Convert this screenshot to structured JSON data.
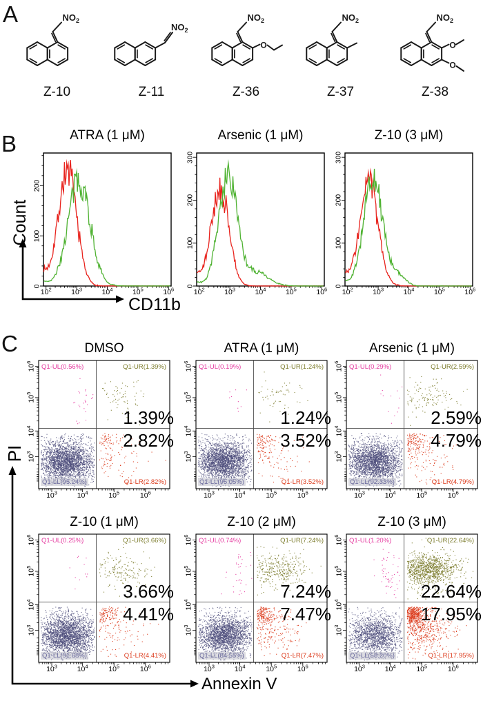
{
  "figure": {
    "panel_a": {
      "letter": "A",
      "no2_label": "NO2",
      "o_label": "O",
      "compounds": [
        {
          "name": "Z-10",
          "variant": "vinyl1",
          "substituents": "1-(2-nitrovinyl)naphthalene"
        },
        {
          "name": "Z-11",
          "variant": "vinyl2",
          "substituents": "2-(2-nitrovinyl)naphthalene"
        },
        {
          "name": "Z-36",
          "variant": "vinyl1-oet",
          "substituents": "2-ethoxy-1-(2-nitrovinyl)naphthalene"
        },
        {
          "name": "Z-37",
          "variant": "vinyl1-me",
          "substituents": "2-methyl-1-(2-nitrovinyl)naphthalene"
        },
        {
          "name": "Z-38",
          "variant": "vinyl1-diome",
          "substituents": "2,3-dimethoxy-1-(2-nitrovinyl)naphthalene"
        }
      ]
    },
    "panel_b": {
      "letter": "B",
      "ylabel": "Count",
      "xlabel": "CD11b"
    },
    "panel_c": {
      "letter": "C",
      "ylabel": "PI",
      "xlabel": "Annexin V"
    }
  },
  "colors": {
    "hist_red": "#e8231d",
    "hist_green": "#4fb232",
    "dot_ul": "#e5399f",
    "dot_ur": "#7c7c2d",
    "dot_ll": "#4d4d7c",
    "dot_lr": "#dc3a1b",
    "lab_ul": "#e5399f",
    "lab_ur": "#7c7c2d",
    "lab_ll": "#6b6b9e",
    "lab_lr": "#dc3a1b",
    "gate": "#4a4a4a",
    "frame": "#000000",
    "structure": "#1a1a1a"
  },
  "chart_data": [
    {
      "panel": "B",
      "type": "line",
      "description": "CD11b flow-cytometry histogram overlays, red = control, green = treated",
      "xlabel": "CD11b",
      "ylabel": "Count",
      "x_scale": "log10",
      "x_tick_exps": [
        2,
        3,
        4,
        5,
        6
      ],
      "plots": [
        {
          "title": "ATRA (1 μM)",
          "ylim": [
            0,
            265
          ],
          "y_ticks": [
            0,
            100,
            200
          ],
          "series": [
            {
              "name": "control",
              "color_key": "hist_red",
              "peak_log": 2.7,
              "peak_count": 230,
              "sigma_log": 0.3
            },
            {
              "name": "treated",
              "color_key": "hist_green",
              "peak_log": 3.08,
              "peak_count": 212,
              "sigma_log": 0.36
            }
          ]
        },
        {
          "title": "Arsenic (1 μM)",
          "ylim": [
            0,
            310
          ],
          "y_ticks": [
            0,
            100,
            200,
            300
          ],
          "series": [
            {
              "name": "control",
              "color_key": "hist_red",
              "peak_log": 2.68,
              "peak_count": 228,
              "sigma_log": 0.29
            },
            {
              "name": "treated",
              "color_key": "hist_green",
              "peak_log": 2.93,
              "peak_count": 260,
              "sigma_log": 0.3,
              "bump": {
                "peak_log": 3.85,
                "peak_count": 32,
                "sigma_log": 0.4
              }
            }
          ]
        },
        {
          "title": "Z-10 (3 μM)",
          "ylim": [
            0,
            310
          ],
          "y_ticks": [
            0,
            100,
            200,
            300
          ],
          "series": [
            {
              "name": "control",
              "color_key": "hist_red",
              "peak_log": 2.7,
              "peak_count": 235,
              "sigma_log": 0.3
            },
            {
              "name": "treated",
              "color_key": "hist_green",
              "peak_log": 2.84,
              "peak_count": 250,
              "sigma_log": 0.31,
              "bump": {
                "peak_log": 3.68,
                "peak_count": 24,
                "sigma_log": 0.22
              }
            }
          ]
        }
      ]
    },
    {
      "panel": "C",
      "type": "scatter",
      "description": "Annexin V / PI apoptosis quadrant plots",
      "xlabel": "Annexin V",
      "ylabel": "PI",
      "x_tick_exps": [
        3,
        4,
        5,
        6
      ],
      "y_tick_exps": [
        3,
        4,
        5,
        6
      ],
      "plots": [
        {
          "title": "DMSO",
          "quadrants": {
            "UL": {
              "label": "Q1-UL(0.56%)",
              "pct": 0.56
            },
            "UR": {
              "label": "Q1-UR(1.39%)",
              "pct": 1.39
            },
            "LL": {
              "label": "Q1-LL(95.24%)",
              "pct": 95.24
            },
            "LR": {
              "label": "Q1-LR(2.82%)",
              "pct": 2.82
            }
          },
          "annot_ur": "1.39%",
          "annot_lr": "2.82%"
        },
        {
          "title": "ATRA (1 μM)",
          "quadrants": {
            "UL": {
              "label": "Q1-UL(0.19%)",
              "pct": 0.19
            },
            "UR": {
              "label": "Q1-UR(1.24%)",
              "pct": 1.24
            },
            "LL": {
              "label": "Q1-LL(95.05%)",
              "pct": 95.05
            },
            "LR": {
              "label": "Q1-LR(3.52%)",
              "pct": 3.52
            }
          },
          "annot_ur": "1.24%",
          "annot_lr": "3.52%"
        },
        {
          "title": "Arsenic (1 μM)",
          "quadrants": {
            "UL": {
              "label": "Q1-UL(0.29%)",
              "pct": 0.29
            },
            "UR": {
              "label": "Q1-UR(2.59%)",
              "pct": 2.59
            },
            "LL": {
              "label": "Q1-LL(92.33%)",
              "pct": 92.33
            },
            "LR": {
              "label": "Q1-LR(4.79%)",
              "pct": 4.79
            }
          },
          "annot_ur": "2.59%",
          "annot_lr": "4.79%"
        },
        {
          "title": "Z-10 (1 μM)",
          "quadrants": {
            "UL": {
              "label": "Q1-UL(0.25%)",
              "pct": 0.25
            },
            "UR": {
              "label": "Q1-UR(3.66%)",
              "pct": 3.66
            },
            "LL": {
              "label": "Q1-LL(91.68%)",
              "pct": 91.68
            },
            "LR": {
              "label": "Q1-LR(4.41%)",
              "pct": 4.41
            }
          },
          "annot_ur": "3.66%",
          "annot_lr": "4.41%"
        },
        {
          "title": "Z-10 (2 μM)",
          "quadrants": {
            "UL": {
              "label": "Q1-UL(0.74%)",
              "pct": 0.74
            },
            "UR": {
              "label": "Q1-UR(7.24%)",
              "pct": 7.24
            },
            "LL": {
              "label": "Q1-LL(84.55%)",
              "pct": 84.55
            },
            "LR": {
              "label": "Q1-LR(7.47%)",
              "pct": 7.47
            }
          },
          "annot_ur": "7.24%",
          "annot_lr": "7.47%"
        },
        {
          "title": "Z-10 (3 μM)",
          "quadrants": {
            "UL": {
              "label": "Q1-UL(1.20%)",
              "pct": 1.2
            },
            "UR": {
              "label": "Q1-UR(22.64%)",
              "pct": 22.64
            },
            "LL": {
              "label": "Q1-LL(58.20%)",
              "pct": 58.2
            },
            "LR": {
              "label": "Q1-LR(17.95%)",
              "pct": 17.95
            }
          },
          "annot_ur": "22.64%",
          "annot_lr": "17.95%"
        }
      ]
    }
  ]
}
